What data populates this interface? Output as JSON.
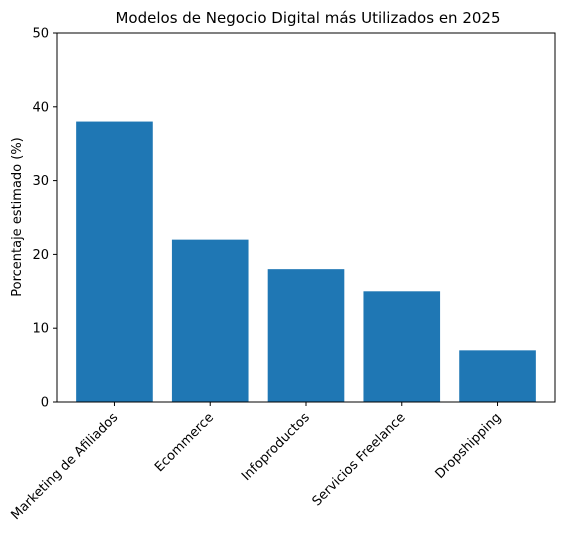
{
  "chart_data": {
    "type": "bar",
    "title": "Modelos de Negocio Digital más Utilizados en 2025",
    "xlabel": "",
    "ylabel": "Porcentaje estimado (%)",
    "categories": [
      "Marketing de Afiliados",
      "Ecommerce",
      "Infoproductos",
      "Servicios Freelance",
      "Dropshipping"
    ],
    "values": [
      38,
      22,
      18,
      15,
      7
    ],
    "ylim": [
      0,
      50
    ],
    "yticks": [
      0,
      10,
      20,
      30,
      40,
      50
    ],
    "bar_color": "#1f77b4",
    "grid": false,
    "legend": "none",
    "x_tick_rotation_deg": 45
  }
}
